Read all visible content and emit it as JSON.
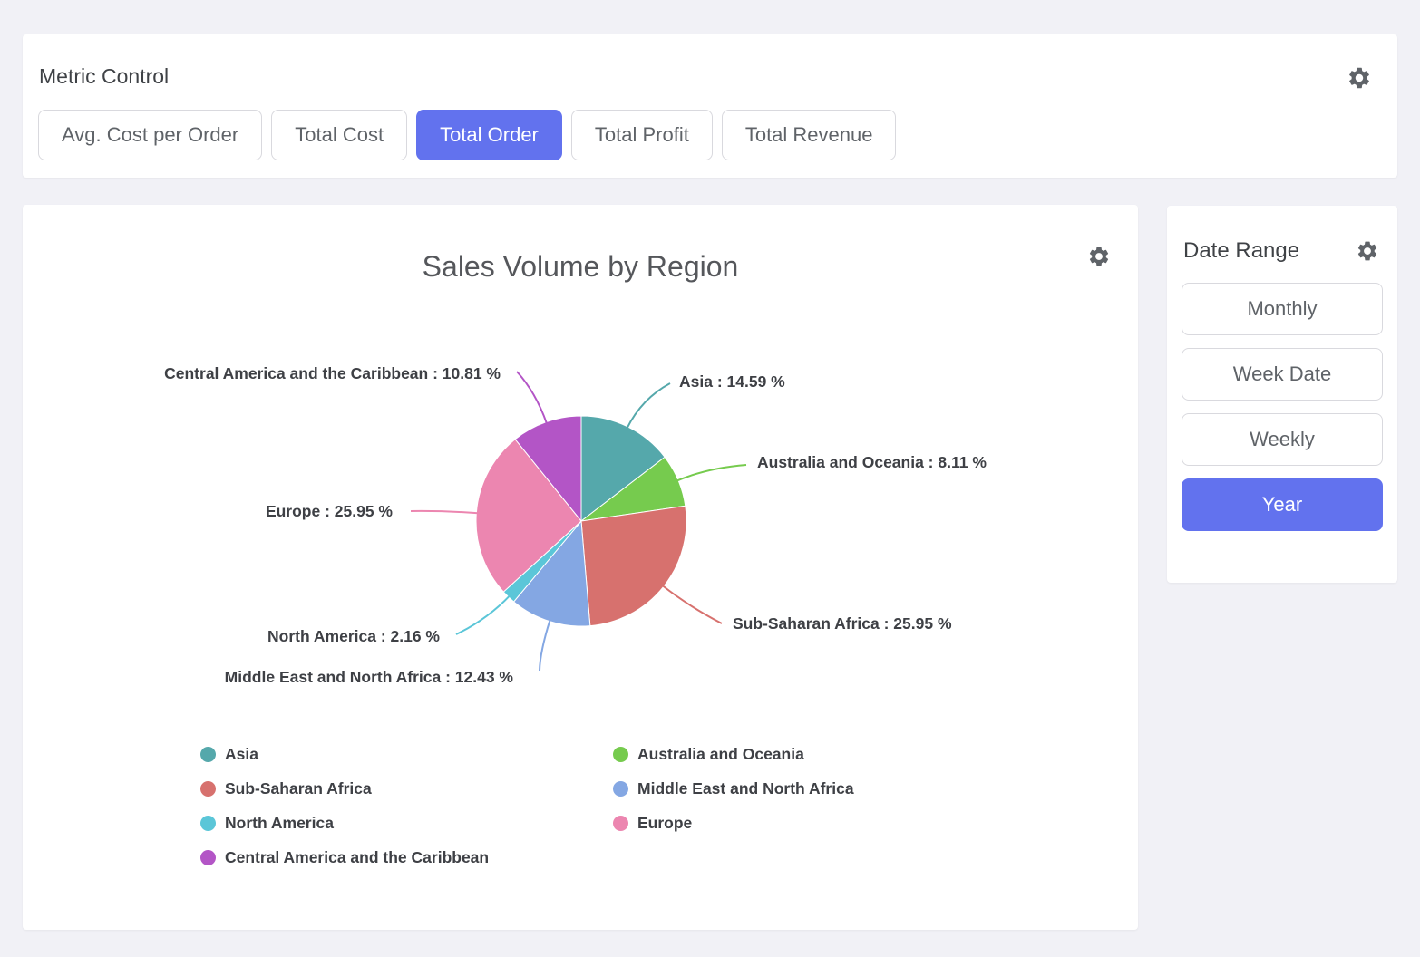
{
  "colors": {
    "accent": "#6272ee",
    "panel_bg": "#ffffff",
    "page_bg": "#f1f1f6"
  },
  "metric_control": {
    "title": "Metric Control",
    "settings_icon": "gear-icon",
    "buttons": [
      {
        "label": "Avg. Cost per Order",
        "selected": false
      },
      {
        "label": "Total Cost",
        "selected": false
      },
      {
        "label": "Total Order",
        "selected": true
      },
      {
        "label": "Total Profit",
        "selected": false
      },
      {
        "label": "Total Revenue",
        "selected": false
      }
    ]
  },
  "date_range": {
    "title": "Date Range",
    "settings_icon": "gear-icon",
    "buttons": [
      {
        "label": "Monthly",
        "selected": false
      },
      {
        "label": "Week Date",
        "selected": false
      },
      {
        "label": "Weekly",
        "selected": false
      },
      {
        "label": "Year",
        "selected": true
      }
    ]
  },
  "chart_data": {
    "type": "pie",
    "title": "Sales Volume by Region",
    "settings_icon": "gear-icon",
    "label_separator": " : ",
    "unit": "%",
    "slices": [
      {
        "name": "Asia",
        "value": 14.59,
        "color": "#55a8ab"
      },
      {
        "name": "Australia and Oceania",
        "value": 8.11,
        "color": "#76cb4e"
      },
      {
        "name": "Sub-Saharan Africa",
        "value": 25.95,
        "color": "#d7716e"
      },
      {
        "name": "Middle East and North Africa",
        "value": 12.43,
        "color": "#84a7e3"
      },
      {
        "name": "North America",
        "value": 2.16,
        "color": "#5bc6d8"
      },
      {
        "name": "Europe",
        "value": 25.95,
        "color": "#ec86b0"
      },
      {
        "name": "Central America and the Caribbean",
        "value": 10.81,
        "color": "#b355c6"
      }
    ],
    "legend_position": "bottom",
    "legend_columns": [
      [
        0,
        2,
        4,
        6
      ],
      [
        1,
        3,
        5
      ]
    ],
    "start_angle_deg": 0,
    "direction": "clockwise"
  }
}
